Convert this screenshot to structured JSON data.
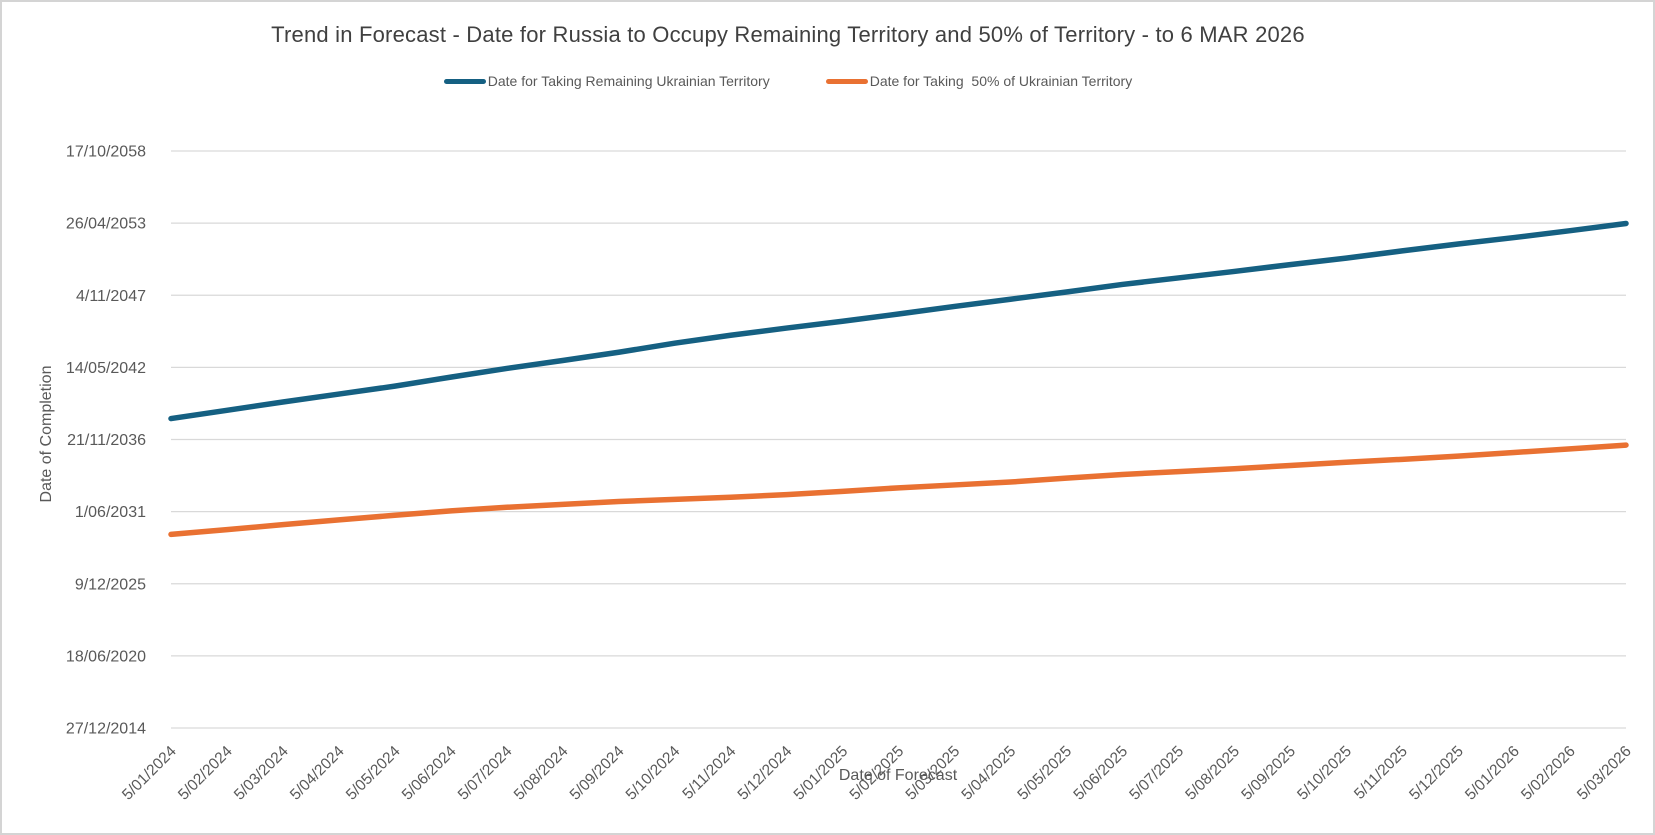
{
  "chart_data": {
    "type": "line",
    "title": "Trend in Forecast - Date for Russia to Occupy Remaining Territory and 50% of Territory - to 6 MAR 2026",
    "xlabel": "Date of Forecast",
    "ylabel": "Date of Completion",
    "grid": true,
    "legend_position": "top-center",
    "value_unit": "excel-serial-days (y axis ticks are dates spaced 2000 days apart; 42000 = 27/12/2014)",
    "ylim": [
      42000,
      58000
    ],
    "y_ticks": [
      {
        "label": "17/10/2058",
        "serial": 58000
      },
      {
        "label": "26/04/2053",
        "serial": 56000
      },
      {
        "label": "4/11/2047",
        "serial": 54000
      },
      {
        "label": "14/05/2042",
        "serial": 52000
      },
      {
        "label": "21/11/2036",
        "serial": 50000
      },
      {
        "label": "1/06/2031",
        "serial": 48000
      },
      {
        "label": "9/12/2025",
        "serial": 46000
      },
      {
        "label": "18/06/2020",
        "serial": 44000
      },
      {
        "label": "27/12/2014",
        "serial": 42000
      }
    ],
    "categories": [
      "5/01/2024",
      "5/02/2024",
      "5/03/2024",
      "5/04/2024",
      "5/05/2024",
      "5/06/2024",
      "5/07/2024",
      "5/08/2024",
      "5/09/2024",
      "5/10/2024",
      "5/11/2024",
      "5/12/2024",
      "5/01/2025",
      "5/02/2025",
      "5/03/2025",
      "5/04/2025",
      "5/05/2025",
      "5/06/2025",
      "5/07/2025",
      "5/08/2025",
      "5/09/2025",
      "5/10/2025",
      "5/11/2025",
      "5/12/2025",
      "5/01/2026",
      "5/02/2026",
      "5/03/2026"
    ],
    "series": [
      {
        "name": "Date for Taking Remaining Ukrainian Territory",
        "slug": "remaining-territory",
        "color": "#156082",
        "values": [
          50580,
          50810,
          51040,
          51260,
          51480,
          51730,
          51970,
          52190,
          52420,
          52670,
          52890,
          53090,
          53280,
          53480,
          53690,
          53890,
          54090,
          54300,
          54480,
          54660,
          54850,
          55030,
          55230,
          55420,
          55600,
          55790,
          55990
        ]
      },
      {
        "name": "Date for Taking  50% of Ukrainian Territory",
        "slug": "50pct-territory",
        "color": "#E97132",
        "values": [
          47370,
          47500,
          47640,
          47770,
          47900,
          48020,
          48120,
          48200,
          48280,
          48340,
          48400,
          48470,
          48560,
          48660,
          48740,
          48820,
          48930,
          49030,
          49110,
          49190,
          49280,
          49370,
          49450,
          49540,
          49640,
          49740,
          49845
        ]
      }
    ],
    "style": {
      "grid_color": "#d9d9d9",
      "tick_text_color": "#595959",
      "title_color": "#404040",
      "line_width": 5.5
    }
  }
}
